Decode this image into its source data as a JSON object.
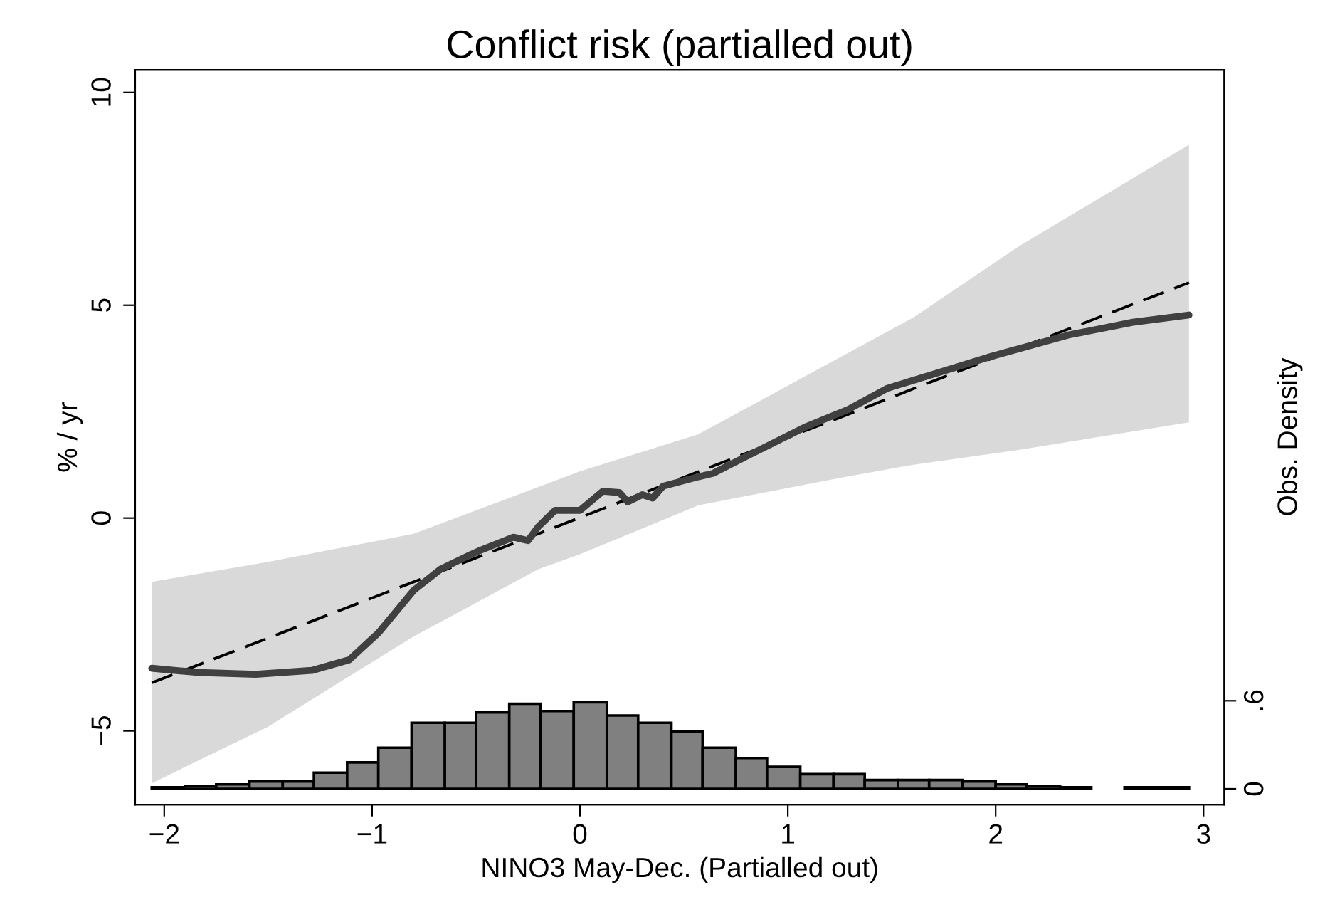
{
  "chart_data": {
    "type": "line",
    "title": "Conflict risk (partialled out)",
    "xlabel": "NINO3 May-Dec. (Partialled out)",
    "ylabel": "% / yr",
    "y2label": "Obs. Density",
    "xlim": [
      -2.14,
      3.1
    ],
    "ylim": [
      -6.73,
      10.53
    ],
    "y2lim": [
      -0.107,
      4.9
    ],
    "xticks": [
      {
        "value": -2,
        "label": "−2"
      },
      {
        "value": -1,
        "label": "−1"
      },
      0,
      1,
      2,
      3
    ],
    "yticks": [
      {
        "value": -5,
        "label": "−5"
      },
      0,
      5,
      10
    ],
    "y2ticks": [
      0,
      {
        "value": 0.6,
        "label": ".6"
      }
    ],
    "grid": false,
    "legend": false,
    "series": [
      {
        "type": "line",
        "color": "#000000",
        "line_style": "dashed",
        "x": [
          -2.06,
          -1.5,
          -0.8,
          -0.2,
          0.0,
          0.57,
          1.26,
          1.6,
          2.11,
          2.93
        ],
        "values": [
          -3.87,
          -2.82,
          -1.5,
          -0.37,
          0.01,
          1.09,
          2.38,
          3.03,
          3.99,
          5.53
        ],
        "lower": [
          -6.23,
          -4.9,
          -2.78,
          -1.2,
          -0.85,
          0.3,
          0.95,
          1.25,
          1.6,
          2.25
        ],
        "upper": [
          -1.5,
          -1.03,
          -0.37,
          0.73,
          1.1,
          1.97,
          3.8,
          4.7,
          6.38,
          8.77
        ]
      },
      {
        "color": "#404040",
        "line_style": "solid",
        "x": [
          -2.06,
          -1.83,
          -1.56,
          -1.29,
          -1.11,
          -0.97,
          -0.8,
          -0.67,
          -0.53,
          -0.49,
          -0.32,
          -0.25,
          -0.2,
          -0.12,
          0.0,
          0.11,
          0.19,
          0.23,
          0.3,
          0.35,
          0.4,
          0.57,
          0.64,
          0.81,
          1.08,
          1.29,
          1.48,
          1.7,
          1.98,
          2.35,
          2.66,
          2.93
        ],
        "values": [
          -3.53,
          -3.63,
          -3.67,
          -3.58,
          -3.33,
          -2.7,
          -1.7,
          -1.2,
          -0.87,
          -0.78,
          -0.45,
          -0.53,
          -0.2,
          0.18,
          0.18,
          0.63,
          0.6,
          0.38,
          0.55,
          0.47,
          0.75,
          0.97,
          1.05,
          1.47,
          2.13,
          2.55,
          3.05,
          3.38,
          3.8,
          4.3,
          4.6,
          4.77
        ]
      },
      {
        "type": "histogram",
        "axis": "y2",
        "color": "#808080",
        "bins": [
          -2.06,
          -1.9,
          -1.75,
          -1.59,
          -1.43,
          -1.28,
          -1.12,
          -0.97,
          -0.81,
          -0.65,
          -0.5,
          -0.34,
          -0.19,
          -0.03,
          0.13,
          0.28,
          0.44,
          0.59,
          0.75,
          0.9,
          1.06,
          1.22,
          1.37,
          1.53,
          1.68,
          1.84,
          2.0,
          2.15,
          2.31,
          2.46,
          2.62,
          2.77,
          2.93
        ],
        "values": [
          0.01,
          0.02,
          0.03,
          0.05,
          0.05,
          0.11,
          0.18,
          0.28,
          0.45,
          0.45,
          0.52,
          0.58,
          0.53,
          0.59,
          0.5,
          0.45,
          0.39,
          0.28,
          0.21,
          0.15,
          0.1,
          0.1,
          0.06,
          0.06,
          0.06,
          0.05,
          0.03,
          0.02,
          0.01,
          null,
          0.01,
          0.01
        ]
      }
    ]
  }
}
